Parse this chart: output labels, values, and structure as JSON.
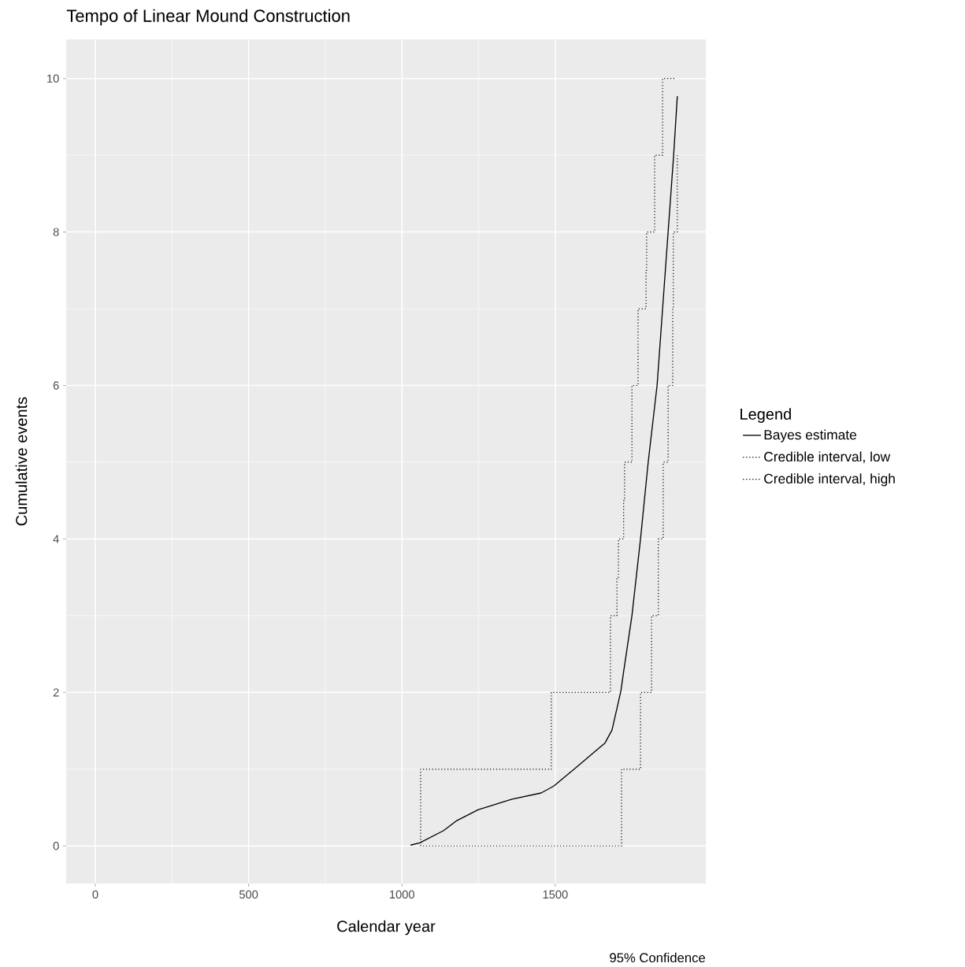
{
  "chart_data": {
    "type": "line",
    "title": "Tempo of Linear Mound Construction",
    "xlabel": "Calendar year",
    "ylabel": "Cumulative events",
    "legend_title": "Legend",
    "annotations": [
      "95% Confidence"
    ],
    "xlim": [
      -95,
      1991
    ],
    "ylim": [
      -0.49,
      10.51
    ],
    "xticks": [
      0,
      500,
      1000,
      1500
    ],
    "yticks": [
      0,
      2,
      4,
      6,
      8,
      10
    ],
    "grid": true,
    "legend": "right",
    "series": [
      {
        "name": "Bayes estimate",
        "type": "line",
        "line_style": "solid",
        "color": "#000000",
        "x": [
          1028,
          1058,
          1136,
          1179,
          1248,
          1359,
          1454,
          1495,
          1573,
          1662,
          1685,
          1701,
          1714,
          1724,
          1750,
          1778,
          1803,
          1832,
          1850,
          1868,
          1886,
          1898
        ],
        "values": [
          0.01,
          0.04,
          0.2,
          0.33,
          0.47,
          0.61,
          0.69,
          0.78,
          1.04,
          1.34,
          1.51,
          1.79,
          2.02,
          2.3,
          3,
          4,
          5,
          6,
          7,
          8,
          9,
          9.77
        ]
      },
      {
        "name": "Credible interval, low",
        "type": "step",
        "line_style": "dotted",
        "color": "#000000",
        "x": [
          1069,
          1716,
          1778,
          1814,
          1836,
          1852,
          1868,
          1883,
          1885,
          1898
        ],
        "values": [
          0,
          1,
          2,
          3,
          4,
          5,
          6,
          7,
          8,
          9
        ]
      },
      {
        "name": "Credible interval, high",
        "type": "step",
        "line_style": "dotted",
        "color": "#000000",
        "x": [
          1061,
          1061,
          1487,
          1680,
          1701,
          1706,
          1723,
          1726,
          1750,
          1770,
          1796,
          1798,
          1824,
          1850,
          1891
        ],
        "values": [
          0,
          1,
          2,
          3,
          3.5,
          4,
          4.5,
          5,
          6,
          7,
          7.5,
          8,
          9,
          10,
          10
        ]
      }
    ]
  }
}
